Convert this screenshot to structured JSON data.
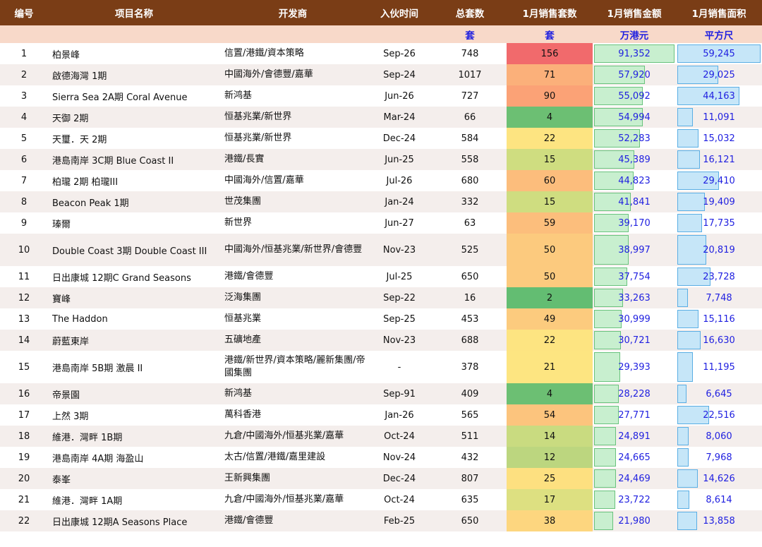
{
  "headers": [
    "编号",
    "项目名称",
    "开发商",
    "入伙时间",
    "总套数",
    "1月销售套数",
    "1月销售金额",
    "1月销售面积"
  ],
  "units": {
    "total": "套",
    "sales": "套",
    "amount": "万港元",
    "area": "平方尺"
  },
  "colors": {
    "header_bg": "#7a3d16",
    "unit_row_bg": "#f8d9c9",
    "amount_bar": "#c8efcf",
    "area_bar": "#c6e6f8",
    "link_blue": "#1f1fe0"
  },
  "rows": [
    {
      "id": "1",
      "name": "柏景峰",
      "dev": "信置/港鐵/資本策略",
      "date": "Sep-26",
      "total": "748",
      "sales": "156",
      "sales_color": "#f16a6c",
      "amount": "91,352",
      "amount_frac": 1.0,
      "area": "59,245",
      "area_frac": 1.0
    },
    {
      "id": "2",
      "name": "啟德海灣 1期",
      "dev": "中國海外/會德豐/嘉華",
      "date": "Sep-24",
      "total": "1017",
      "sales": "71",
      "sales_color": "#fbb07a",
      "amount": "57,920",
      "amount_frac": 0.634,
      "area": "29,025",
      "area_frac": 0.49
    },
    {
      "id": "3",
      "name": "Sierra Sea 2A期 Coral Avenue",
      "dev": "新鸿基",
      "date": "Jun-26",
      "total": "727",
      "sales": "90",
      "sales_color": "#fba276",
      "amount": "55,092",
      "amount_frac": 0.603,
      "area": "44,163",
      "area_frac": 0.745
    },
    {
      "id": "4",
      "name": "天御 2期",
      "dev": "恒基兆業/新世界",
      "date": "Mar-24",
      "total": "66",
      "sales": "4",
      "sales_color": "#6cbf73",
      "amount": "54,994",
      "amount_frac": 0.602,
      "area": "11,091",
      "area_frac": 0.187
    },
    {
      "id": "5",
      "name": "天璽．天 2期",
      "dev": "恒基兆業/新世界",
      "date": "Dec-24",
      "total": "584",
      "sales": "22",
      "sales_color": "#fde481",
      "amount": "52,283",
      "amount_frac": 0.572,
      "area": "15,032",
      "area_frac": 0.254
    },
    {
      "id": "6",
      "name": "港島南岸 3C期 Blue Coast II",
      "dev": "港鐵/長實",
      "date": "Jun-25",
      "total": "558",
      "sales": "15",
      "sales_color": "#cfdd80",
      "amount": "45,389",
      "amount_frac": 0.497,
      "area": "16,121",
      "area_frac": 0.272
    },
    {
      "id": "7",
      "name": "柏瓏 2期 柏瓏III",
      "dev": "中國海外/信置/嘉華",
      "date": "Jul-26",
      "total": "680",
      "sales": "60",
      "sales_color": "#fcbd7c",
      "amount": "44,823",
      "amount_frac": 0.491,
      "area": "29,410",
      "area_frac": 0.496
    },
    {
      "id": "8",
      "name": "Beacon Peak 1期",
      "dev": "世茂集團",
      "date": "Jan-24",
      "total": "332",
      "sales": "15",
      "sales_color": "#cfdd80",
      "amount": "41,841",
      "amount_frac": 0.458,
      "area": "19,409",
      "area_frac": 0.328
    },
    {
      "id": "9",
      "name": "瑧爾",
      "dev": "新世界",
      "date": "Jun-27",
      "total": "63",
      "sales": "59",
      "sales_color": "#fcbe7c",
      "amount": "39,170",
      "amount_frac": 0.429,
      "area": "17,735",
      "area_frac": 0.299
    },
    {
      "id": "10",
      "name": "Double Coast 3期 Double Coast III",
      "dev": "中國海外/恒基兆業/新世界/會德豐",
      "date": "Nov-23",
      "total": "525",
      "sales": "50",
      "sales_color": "#fcca7e",
      "amount": "38,997",
      "amount_frac": 0.427,
      "area": "20,819",
      "area_frac": 0.351,
      "tall": true
    },
    {
      "id": "11",
      "name": "日出康城 12期C Grand Seasons",
      "dev": "港鐵/會德豐",
      "date": "Jul-25",
      "total": "650",
      "sales": "50",
      "sales_color": "#fcca7e",
      "amount": "37,754",
      "amount_frac": 0.413,
      "area": "23,728",
      "area_frac": 0.4
    },
    {
      "id": "12",
      "name": "寶峰",
      "dev": "泛海集團",
      "date": "Sep-22",
      "total": "16",
      "sales": "2",
      "sales_color": "#63bd72",
      "amount": "33,263",
      "amount_frac": 0.364,
      "area": "7,748",
      "area_frac": 0.131
    },
    {
      "id": "13",
      "name": "The Haddon",
      "dev": "恒基兆業",
      "date": "Sep-25",
      "total": "453",
      "sales": "49",
      "sales_color": "#fccb7e",
      "amount": "30,999",
      "amount_frac": 0.339,
      "area": "15,116",
      "area_frac": 0.255
    },
    {
      "id": "14",
      "name": "蔚藍東岸",
      "dev": "五礦地產",
      "date": "Nov-23",
      "total": "688",
      "sales": "22",
      "sales_color": "#fde481",
      "amount": "30,721",
      "amount_frac": 0.336,
      "area": "16,630",
      "area_frac": 0.281
    },
    {
      "id": "15",
      "name": "港島南岸 5B期 激晨 II",
      "dev": "港鐵/新世界/資本策略/麗新集團/帝國集團",
      "date": "-",
      "total": "378",
      "sales": "21",
      "sales_color": "#fde581",
      "amount": "29,393",
      "amount_frac": 0.322,
      "area": "11,195",
      "area_frac": 0.189,
      "tall": true
    },
    {
      "id": "16",
      "name": "帝景園",
      "dev": "新鸿基",
      "date": "Sep-91",
      "total": "409",
      "sales": "4",
      "sales_color": "#6cbf73",
      "amount": "28,228",
      "amount_frac": 0.309,
      "area": "6,645",
      "area_frac": 0.112
    },
    {
      "id": "17",
      "name": "上然 3期",
      "dev": "萬科香港",
      "date": "Jan-26",
      "total": "565",
      "sales": "54",
      "sales_color": "#fcc47d",
      "amount": "27,771",
      "amount_frac": 0.304,
      "area": "22,516",
      "area_frac": 0.38
    },
    {
      "id": "18",
      "name": "維港．灣畔 1B期",
      "dev": "九倉/中國海外/恒基兆業/嘉華",
      "date": "Oct-24",
      "total": "511",
      "sales": "14",
      "sales_color": "#c9db80",
      "amount": "24,891",
      "amount_frac": 0.272,
      "area": "8,060",
      "area_frac": 0.136
    },
    {
      "id": "19",
      "name": "港島南岸 4A期 海盈山",
      "dev": "太古/信置/港鐵/嘉里建設",
      "date": "Nov-24",
      "total": "432",
      "sales": "12",
      "sales_color": "#bcd67f",
      "amount": "24,665",
      "amount_frac": 0.27,
      "area": "7,968",
      "area_frac": 0.134
    },
    {
      "id": "20",
      "name": "泰峯",
      "dev": "王新興集團",
      "date": "Dec-24",
      "total": "807",
      "sales": "25",
      "sales_color": "#fde080",
      "amount": "24,469",
      "amount_frac": 0.268,
      "area": "14,626",
      "area_frac": 0.247
    },
    {
      "id": "21",
      "name": "維港．灣畔 1A期",
      "dev": "九倉/中國海外/恒基兆業/嘉華",
      "date": "Oct-24",
      "total": "635",
      "sales": "17",
      "sales_color": "#dde081",
      "amount": "23,722",
      "amount_frac": 0.26,
      "area": "8,614",
      "area_frac": 0.145
    },
    {
      "id": "22",
      "name": "日出康城 12期A Seasons Place",
      "dev": "港鐵/會德豐",
      "date": "Feb-25",
      "total": "650",
      "sales": "38",
      "sales_color": "#fdd67f",
      "amount": "21,980",
      "amount_frac": 0.241,
      "area": "13,858",
      "area_frac": 0.234
    }
  ]
}
